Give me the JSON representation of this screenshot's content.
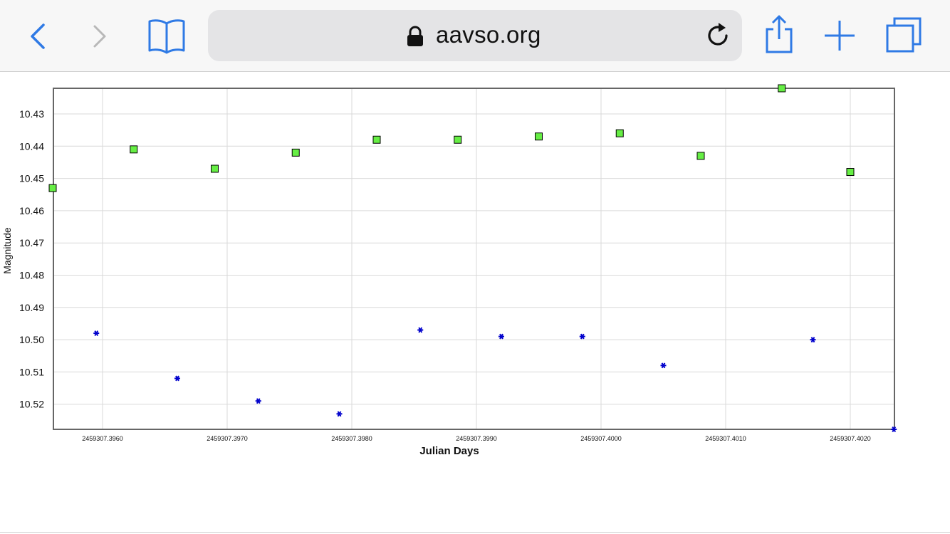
{
  "browser": {
    "url_text": "aavso.org",
    "accent_color": "#2f7ae5",
    "icons": [
      "back-icon",
      "forward-icon",
      "bookmarks-icon",
      "lock-icon",
      "reload-icon",
      "share-icon",
      "new-tab-icon",
      "tabs-icon"
    ]
  },
  "chart_data": {
    "type": "scatter",
    "xlabel": "Julian Days",
    "ylabel": "Magnitude",
    "y_inverted": true,
    "ylim": [
      10.422,
      10.528
    ],
    "xlim": [
      2459307.3956,
      2459307.4023
    ],
    "grid": true,
    "x_ticks": [
      "2459307.3960",
      "2459307.3970",
      "2459307.3980",
      "2459307.3990",
      "2459307.4000",
      "2459307.4010",
      "2459307.4020"
    ],
    "x_tick_values": [
      2459307.396,
      2459307.397,
      2459307.398,
      2459307.399,
      2459307.4,
      2459307.401,
      2459307.402
    ],
    "y_ticks": [
      "10.43",
      "10.44",
      "10.45",
      "10.46",
      "10.47",
      "10.48",
      "10.49",
      "10.50",
      "10.51",
      "10.52"
    ],
    "y_tick_values": [
      10.43,
      10.44,
      10.45,
      10.46,
      10.47,
      10.48,
      10.49,
      10.5,
      10.51,
      10.52
    ],
    "series": [
      {
        "marker": "square",
        "color": "#66ee44",
        "x": [
          2459307.3956,
          2459307.39625,
          2459307.3969,
          2459307.39755,
          2459307.3982,
          2459307.39885,
          2459307.3995,
          2459307.40015,
          2459307.4008,
          2459307.40145,
          2459307.402
        ],
        "y": [
          10.453,
          10.441,
          10.447,
          10.442,
          10.438,
          10.438,
          10.437,
          10.436,
          10.443,
          10.422,
          10.448
        ]
      },
      {
        "marker": "star",
        "color": "#0000cc",
        "x": [
          2459307.39595,
          2459307.3966,
          2459307.39725,
          2459307.3979,
          2459307.39855,
          2459307.3992,
          2459307.39985,
          2459307.4005,
          2459307.4017,
          2459307.40235
        ],
        "y": [
          10.498,
          10.512,
          10.519,
          10.523,
          10.497,
          10.499,
          10.499,
          10.508,
          10.5,
          10.53
        ]
      }
    ]
  }
}
